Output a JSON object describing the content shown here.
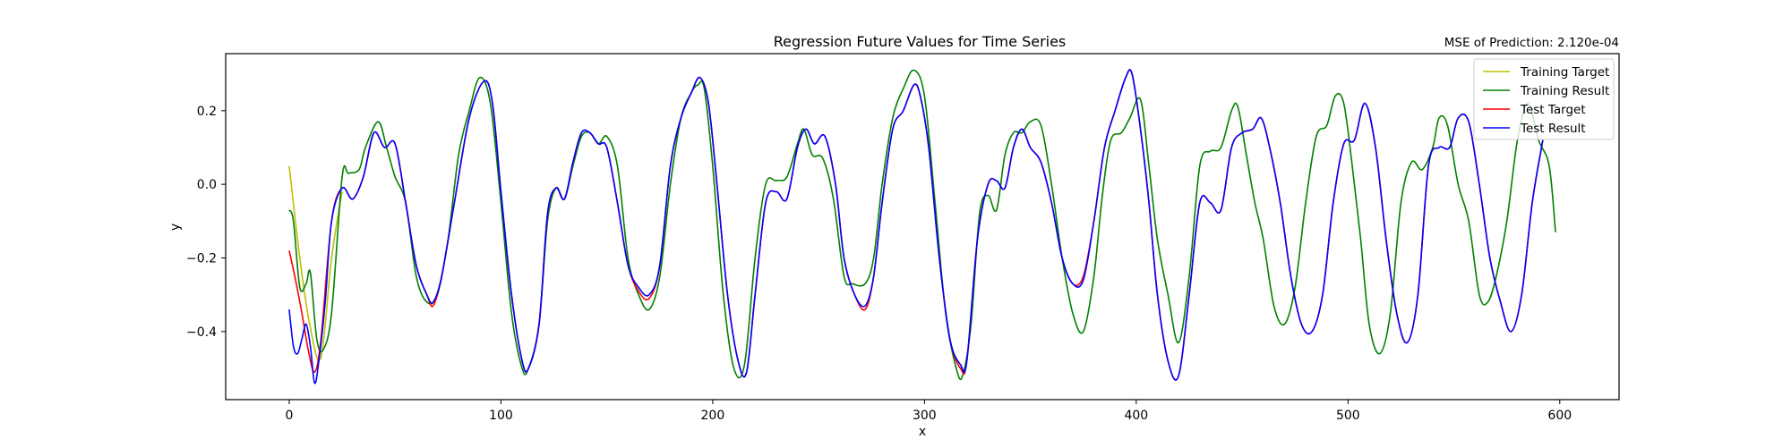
{
  "chart_data": {
    "type": "line",
    "title": "Regression Future Values for Time Series",
    "subtitle": "MSE of Prediction: 2.120e-04",
    "xlabel": "x",
    "ylabel": "y",
    "xlim": [
      -30,
      628
    ],
    "ylim": [
      -0.585,
      0.355
    ],
    "x_ticks": [
      0,
      100,
      200,
      300,
      400,
      500,
      600
    ],
    "x_tick_labels": [
      "0",
      "100",
      "200",
      "300",
      "400",
      "500",
      "600"
    ],
    "y_ticks": [
      -0.4,
      -0.2,
      0.0,
      0.2
    ],
    "y_tick_labels": [
      "−0.4",
      "−0.2",
      "0.0",
      "0.2"
    ],
    "grid": false,
    "legend_position": "top-right",
    "series": [
      {
        "name": "Training Target",
        "color": "#bfbf00",
        "x": [
          0,
          5,
          10,
          15,
          20,
          25
        ],
        "y": [
          0.05,
          -0.2,
          -0.39,
          -0.47,
          -0.2,
          -0.02
        ]
      },
      {
        "name": "Training Result",
        "color": "#008000",
        "x": [
          0,
          2,
          5,
          8,
          10,
          13,
          16,
          20,
          25,
          28,
          33,
          36,
          42,
          46,
          50,
          55,
          60,
          65,
          70,
          75,
          80,
          85,
          90,
          95,
          100,
          105,
          110,
          113,
          118,
          122,
          126,
          130,
          134,
          138,
          142,
          146,
          150,
          155,
          160,
          165,
          170,
          175,
          180,
          185,
          190,
          193,
          196,
          200,
          205,
          210,
          215,
          220,
          225,
          230,
          235,
          240,
          243,
          247,
          252,
          257,
          262,
          266,
          272,
          276,
          280,
          285,
          290,
          295,
          300,
          305,
          310,
          315,
          318,
          322,
          326,
          330,
          334,
          338,
          342,
          346,
          350,
          355,
          360,
          365,
          370,
          375,
          380,
          384,
          388,
          393,
          397,
          402,
          406,
          410,
          415,
          420,
          425,
          430,
          435,
          440,
          445,
          448,
          452,
          456,
          460,
          465,
          470,
          475,
          480,
          485,
          490,
          494,
          498,
          502,
          506,
          510,
          515,
          520,
          525,
          530,
          535,
          540,
          543,
          547,
          552,
          557,
          562,
          566,
          570,
          575,
          580,
          585,
          590,
          595,
          598
        ],
        "y": [
          -0.07,
          -0.1,
          -0.28,
          -0.27,
          -0.24,
          -0.42,
          -0.45,
          -0.35,
          0.02,
          0.03,
          0.04,
          0.1,
          0.17,
          0.1,
          0.02,
          -0.05,
          -0.25,
          -0.32,
          -0.3,
          -0.15,
          0.08,
          0.2,
          0.29,
          0.22,
          -0.05,
          -0.35,
          -0.5,
          -0.5,
          -0.38,
          -0.1,
          -0.01,
          -0.04,
          0.05,
          0.13,
          0.14,
          0.11,
          0.13,
          0.05,
          -0.2,
          -0.3,
          -0.34,
          -0.25,
          0.0,
          0.18,
          0.25,
          0.27,
          0.26,
          0.05,
          -0.3,
          -0.5,
          -0.49,
          -0.2,
          0.0,
          0.01,
          0.02,
          0.11,
          0.15,
          0.08,
          0.07,
          -0.04,
          -0.25,
          -0.27,
          -0.27,
          -0.2,
          0.0,
          0.18,
          0.26,
          0.31,
          0.24,
          -0.05,
          -0.35,
          -0.5,
          -0.52,
          -0.38,
          -0.08,
          -0.03,
          -0.07,
          0.08,
          0.14,
          0.14,
          0.17,
          0.16,
          0.0,
          -0.2,
          -0.35,
          -0.4,
          -0.25,
          -0.03,
          0.12,
          0.14,
          0.18,
          0.23,
          0.05,
          -0.15,
          -0.3,
          -0.43,
          -0.25,
          0.05,
          0.09,
          0.1,
          0.2,
          0.21,
          0.08,
          -0.05,
          -0.15,
          -0.33,
          -0.38,
          -0.28,
          -0.05,
          0.13,
          0.16,
          0.24,
          0.22,
          0.05,
          -0.15,
          -0.38,
          -0.46,
          -0.35,
          -0.05,
          0.06,
          0.04,
          0.1,
          0.18,
          0.16,
          0.0,
          -0.1,
          -0.3,
          -0.32,
          -0.25,
          -0.1,
          0.12,
          0.22,
          0.12,
          0.05,
          -0.13
        ]
      },
      {
        "name": "Test Target",
        "color": "#ff0000",
        "x": [
          0,
          3,
          6,
          9,
          12,
          15,
          20,
          25,
          30,
          35,
          40,
          45,
          50,
          55,
          60,
          65,
          68,
          72,
          78,
          85,
          92,
          96,
          100,
          105,
          110,
          113,
          118,
          122,
          126,
          130,
          134,
          138,
          142,
          146,
          150,
          155,
          160,
          165,
          170,
          175,
          180,
          185,
          190,
          194,
          198,
          202,
          207,
          212,
          216,
          220,
          225,
          230,
          235,
          240,
          244,
          248,
          253,
          258,
          262,
          267,
          272,
          276,
          280,
          285,
          290,
          295,
          298,
          302,
          307,
          312,
          317,
          320,
          325,
          330,
          334,
          338,
          342,
          346,
          350,
          355,
          360,
          365,
          370,
          375,
          380,
          385,
          390,
          395,
          398,
          402,
          406,
          410,
          415,
          420,
          425,
          430,
          435,
          440,
          445,
          450,
          455,
          459,
          463,
          468,
          473,
          478,
          483,
          488,
          493,
          498,
          503,
          508,
          513,
          518,
          523,
          528,
          533,
          538,
          543,
          548,
          552,
          557,
          562,
          567,
          572,
          577,
          582,
          587,
          592
        ],
        "y": [
          -0.18,
          -0.26,
          -0.35,
          -0.45,
          -0.51,
          -0.42,
          -0.1,
          -0.01,
          -0.04,
          0.02,
          0.14,
          0.1,
          0.11,
          -0.05,
          -0.22,
          -0.3,
          -0.33,
          -0.25,
          -0.05,
          0.18,
          0.28,
          0.22,
          -0.02,
          -0.3,
          -0.48,
          -0.5,
          -0.38,
          -0.08,
          -0.01,
          -0.04,
          0.06,
          0.14,
          0.14,
          0.11,
          0.1,
          -0.05,
          -0.22,
          -0.29,
          -0.31,
          -0.22,
          0.05,
          0.18,
          0.25,
          0.29,
          0.22,
          0.0,
          -0.3,
          -0.48,
          -0.51,
          -0.3,
          -0.05,
          -0.02,
          -0.04,
          0.1,
          0.15,
          0.11,
          0.13,
          0.0,
          -0.2,
          -0.3,
          -0.34,
          -0.25,
          -0.05,
          0.15,
          0.2,
          0.27,
          0.24,
          0.1,
          -0.2,
          -0.42,
          -0.5,
          -0.48,
          -0.15,
          0.0,
          0.01,
          -0.01,
          0.1,
          0.15,
          0.1,
          0.06,
          -0.05,
          -0.2,
          -0.27,
          -0.25,
          -0.1,
          0.1,
          0.2,
          0.29,
          0.3,
          0.15,
          -0.05,
          -0.3,
          -0.48,
          -0.52,
          -0.3,
          -0.05,
          -0.05,
          -0.07,
          0.1,
          0.14,
          0.15,
          0.18,
          0.1,
          -0.05,
          -0.25,
          -0.38,
          -0.4,
          -0.3,
          -0.05,
          0.11,
          0.12,
          0.22,
          0.1,
          -0.15,
          -0.35,
          -0.43,
          -0.3,
          0.05,
          0.1,
          0.1,
          0.18,
          0.17,
          0.0,
          -0.2,
          -0.32,
          -0.4,
          -0.3,
          -0.05,
          0.12
        ]
      },
      {
        "name": "Test Result",
        "color": "#0000ff",
        "x": [
          0,
          2,
          4,
          6,
          8,
          10,
          12,
          14,
          17,
          20,
          25,
          30,
          35,
          40,
          45,
          50,
          55,
          60,
          65,
          68,
          72,
          78,
          85,
          92,
          96,
          100,
          105,
          110,
          113,
          118,
          122,
          126,
          130,
          134,
          138,
          142,
          146,
          150,
          155,
          160,
          165,
          170,
          175,
          180,
          185,
          190,
          194,
          198,
          202,
          207,
          212,
          216,
          220,
          225,
          230,
          235,
          240,
          244,
          248,
          253,
          258,
          262,
          267,
          272,
          276,
          280,
          285,
          290,
          295,
          298,
          302,
          307,
          312,
          317,
          320,
          325,
          330,
          334,
          338,
          342,
          346,
          350,
          355,
          360,
          365,
          370,
          375,
          380,
          385,
          390,
          395,
          398,
          402,
          406,
          410,
          415,
          420,
          425,
          430,
          435,
          440,
          445,
          450,
          455,
          459,
          463,
          468,
          473,
          478,
          483,
          488,
          493,
          498,
          503,
          508,
          513,
          518,
          523,
          528,
          533,
          538,
          543,
          548,
          552,
          557,
          562,
          567,
          572,
          577,
          582,
          587,
          592
        ],
        "y": [
          -0.34,
          -0.44,
          -0.46,
          -0.42,
          -0.38,
          -0.44,
          -0.54,
          -0.48,
          -0.32,
          -0.1,
          -0.01,
          -0.04,
          0.02,
          0.14,
          0.1,
          0.11,
          -0.05,
          -0.22,
          -0.3,
          -0.32,
          -0.25,
          -0.05,
          0.18,
          0.28,
          0.22,
          -0.02,
          -0.3,
          -0.48,
          -0.5,
          -0.38,
          -0.08,
          -0.01,
          -0.04,
          0.06,
          0.14,
          0.14,
          0.11,
          0.1,
          -0.05,
          -0.22,
          -0.28,
          -0.3,
          -0.22,
          0.05,
          0.18,
          0.25,
          0.29,
          0.22,
          0.0,
          -0.3,
          -0.48,
          -0.51,
          -0.3,
          -0.05,
          -0.02,
          -0.04,
          0.1,
          0.15,
          0.11,
          0.13,
          0.0,
          -0.2,
          -0.3,
          -0.33,
          -0.25,
          -0.05,
          0.15,
          0.2,
          0.27,
          0.24,
          0.1,
          -0.2,
          -0.42,
          -0.49,
          -0.48,
          -0.15,
          0.0,
          0.01,
          -0.01,
          0.1,
          0.15,
          0.1,
          0.06,
          -0.05,
          -0.2,
          -0.27,
          -0.26,
          -0.1,
          0.1,
          0.2,
          0.29,
          0.3,
          0.15,
          -0.05,
          -0.3,
          -0.48,
          -0.52,
          -0.3,
          -0.05,
          -0.05,
          -0.07,
          0.1,
          0.14,
          0.15,
          0.18,
          0.1,
          -0.05,
          -0.25,
          -0.38,
          -0.4,
          -0.3,
          -0.05,
          0.11,
          0.12,
          0.22,
          0.1,
          -0.15,
          -0.35,
          -0.43,
          -0.3,
          0.05,
          0.1,
          0.1,
          0.18,
          0.17,
          0.0,
          -0.2,
          -0.32,
          -0.4,
          -0.3,
          -0.05,
          0.12
        ]
      }
    ]
  }
}
